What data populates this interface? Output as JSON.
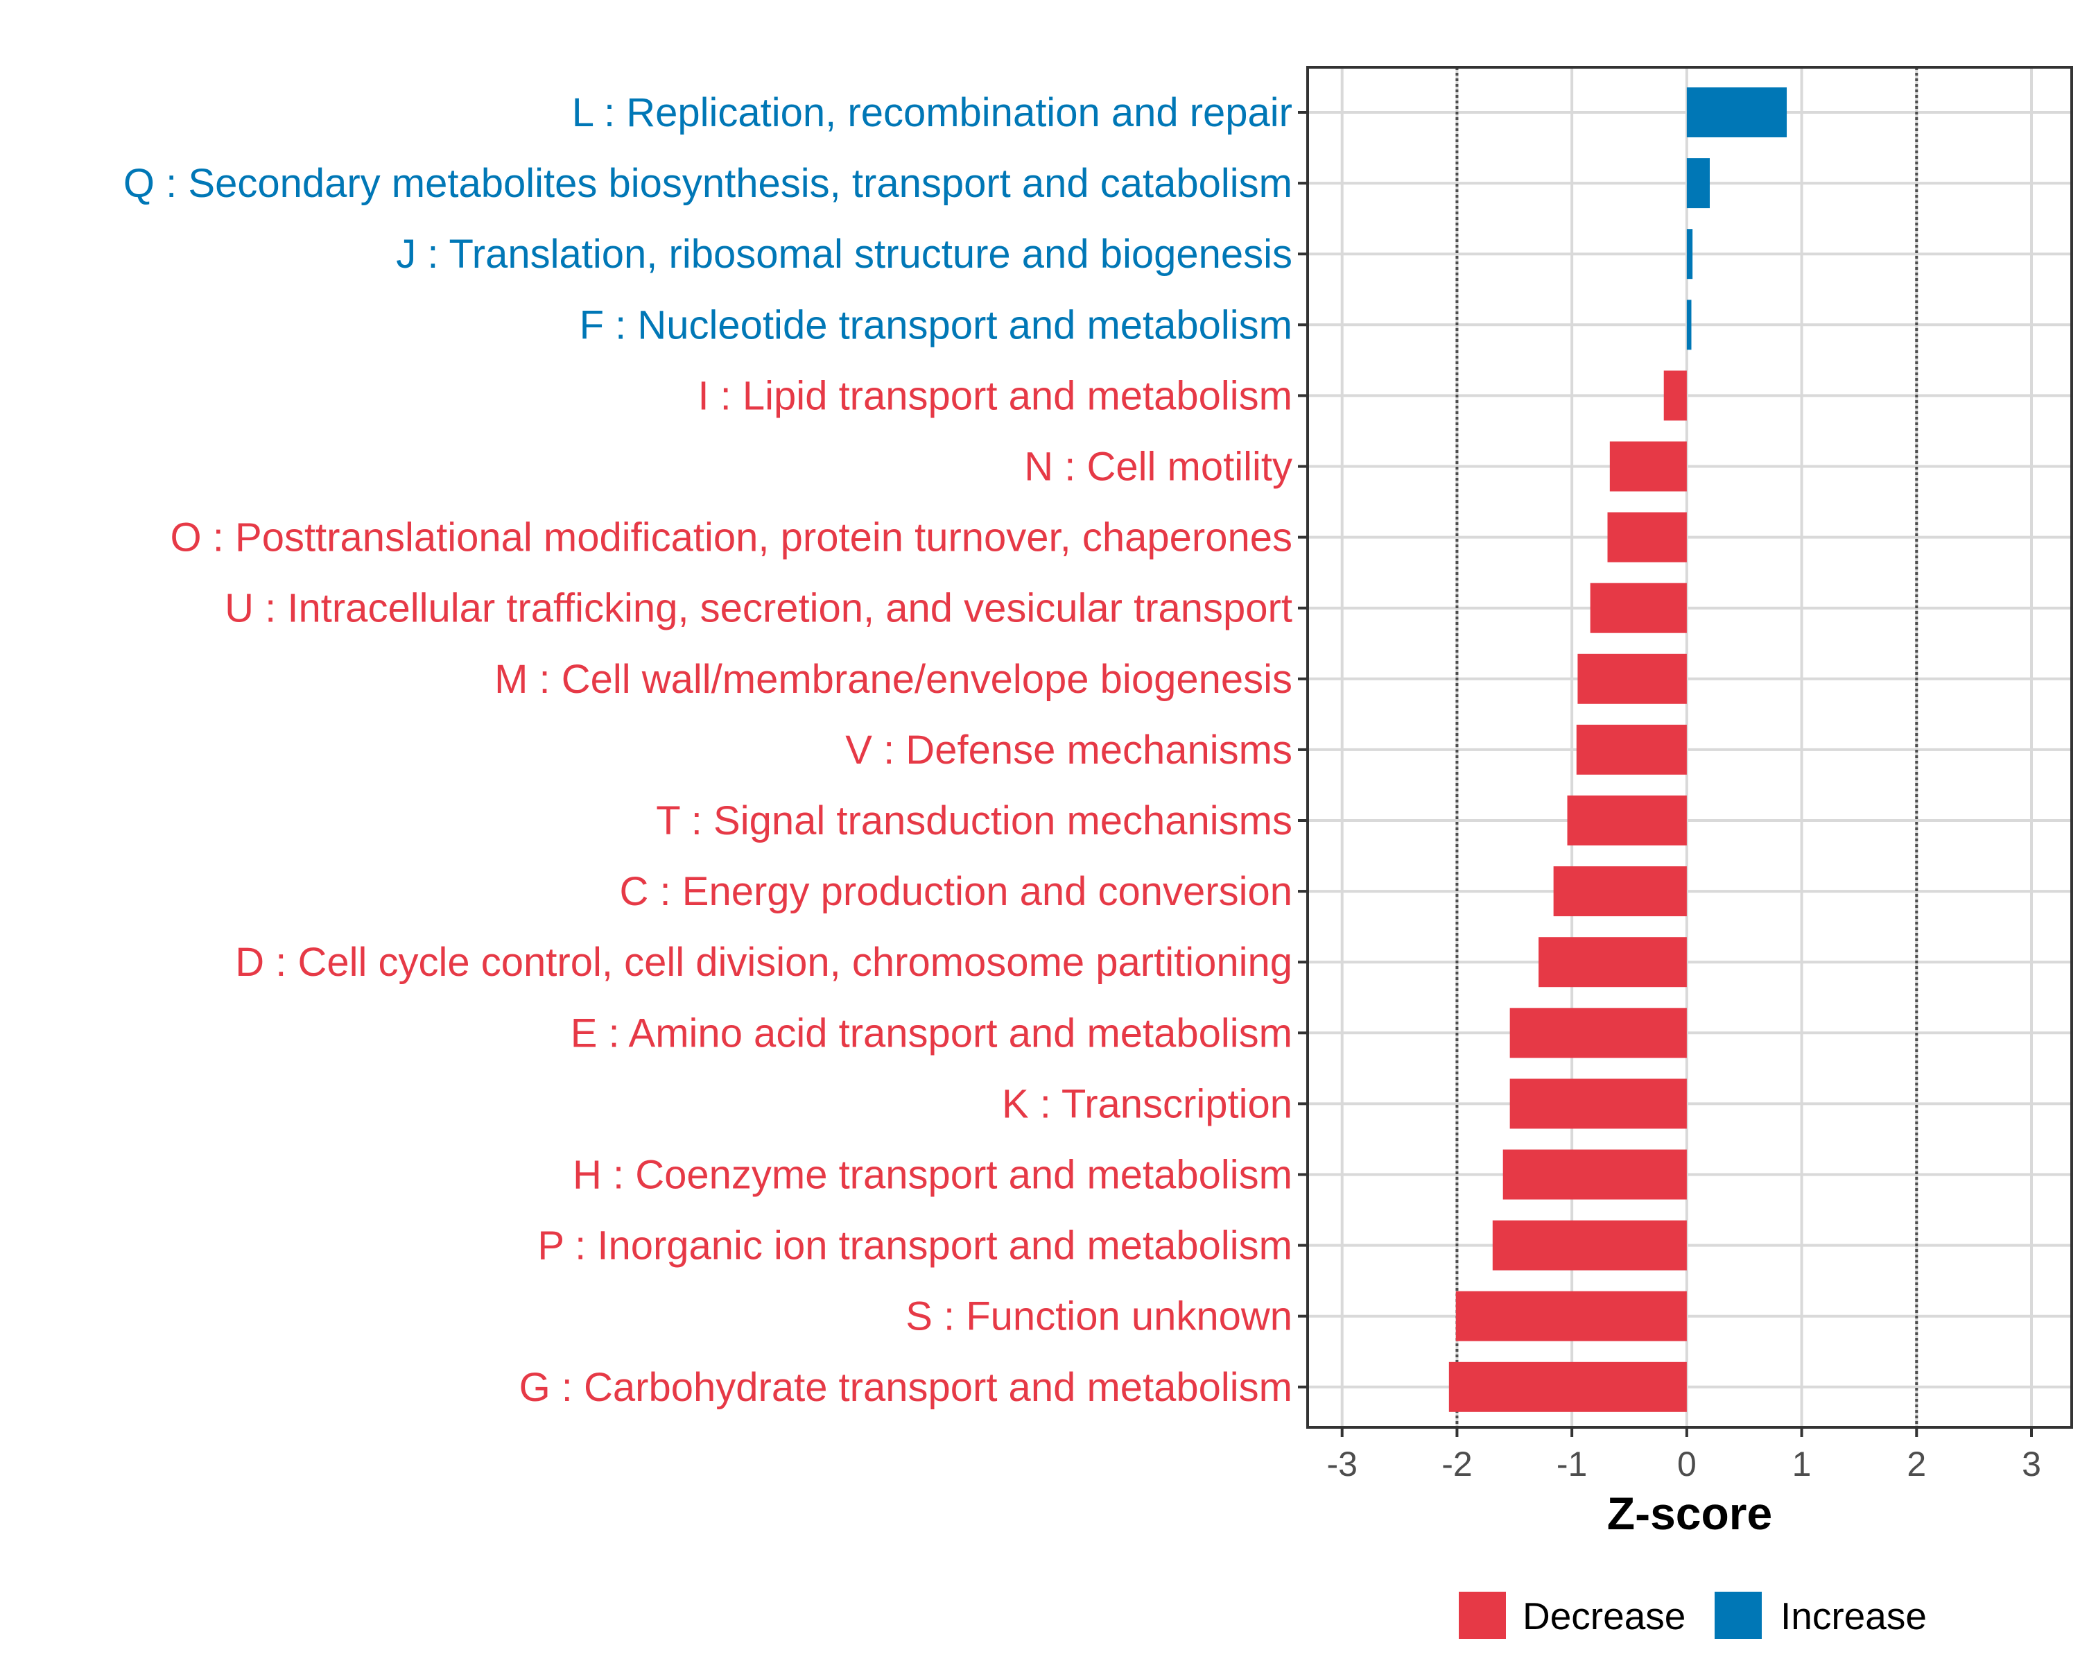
{
  "colors": {
    "decrease": "#E63946",
    "increase": "#0077B6",
    "grid": "#D9D9D9",
    "threshold": "#4D4D4D",
    "panel_border": "#333333"
  },
  "chart_data": {
    "type": "bar",
    "orientation": "horizontal",
    "title": "",
    "xlabel": "Z-score",
    "ylabel": "",
    "xlim": [
      -3.3,
      3.35
    ],
    "xticks": [
      -3,
      -2,
      -1,
      0,
      1,
      2,
      3
    ],
    "xtick_labels": [
      "-3",
      "-2",
      "-1",
      "0",
      "1",
      "2",
      "3"
    ],
    "grid": true,
    "threshold_lines": [
      -2,
      2
    ],
    "categories": [
      "L : Replication, recombination and repair",
      "Q : Secondary metabolites biosynthesis, transport and catabolism",
      "J : Translation, ribosomal structure and biogenesis",
      "F : Nucleotide transport and metabolism",
      "I : Lipid transport and metabolism",
      "N : Cell motility",
      "O : Posttranslational modification, protein turnover, chaperones",
      "U : Intracellular trafficking, secretion, and vesicular transport",
      "M : Cell wall/membrane/envelope biogenesis",
      "V : Defense mechanisms",
      "T : Signal transduction mechanisms",
      "C : Energy production and conversion",
      "D : Cell cycle control, cell division, chromosome partitioning",
      "E : Amino acid transport and metabolism",
      "K : Transcription",
      "H : Coenzyme transport and metabolism",
      "P : Inorganic ion transport and metabolism",
      "S : Function unknown",
      "G : Carbohydrate transport and metabolism"
    ],
    "values": [
      0.87,
      0.2,
      0.05,
      0.04,
      -0.2,
      -0.67,
      -0.69,
      -0.84,
      -0.95,
      -0.96,
      -1.04,
      -1.16,
      -1.29,
      -1.54,
      -1.54,
      -1.6,
      -1.69,
      -2.01,
      -2.07
    ],
    "groups": [
      "Increase",
      "Increase",
      "Increase",
      "Increase",
      "Decrease",
      "Decrease",
      "Decrease",
      "Decrease",
      "Decrease",
      "Decrease",
      "Decrease",
      "Decrease",
      "Decrease",
      "Decrease",
      "Decrease",
      "Decrease",
      "Decrease",
      "Decrease",
      "Decrease"
    ],
    "legend": {
      "position": "bottom",
      "entries": [
        "Decrease",
        "Increase"
      ]
    }
  }
}
